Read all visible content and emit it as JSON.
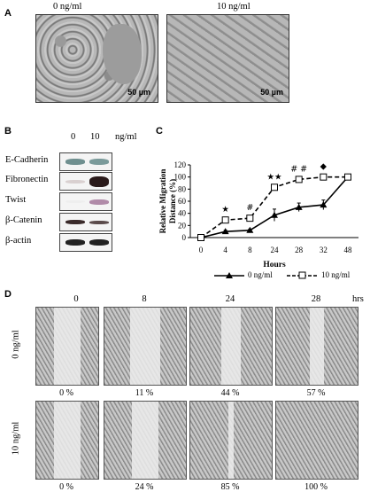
{
  "panel_a": {
    "letter": "A",
    "titles": [
      "0 ng/ml",
      "10 ng/ml"
    ],
    "scale_labels": [
      "50 µm",
      "50 µm"
    ]
  },
  "panel_b": {
    "letter": "B",
    "lane_labels": [
      "0",
      "10"
    ],
    "unit": "ng/ml",
    "proteins": [
      "E-Cadherin",
      "Fibronectin",
      "Twist",
      "β-Catenin",
      "β-actin"
    ]
  },
  "panel_c": {
    "letter": "C"
  },
  "chart_data": {
    "type": "line",
    "ylabel": "Relative Migration Distance (%)",
    "xlabel": "Hours",
    "x": [
      "0",
      "4",
      "8",
      "24",
      "28",
      "32",
      "48"
    ],
    "yticks": [
      "0",
      "20",
      "40",
      "60",
      "80",
      "100",
      "120"
    ],
    "ylim": [
      0,
      120
    ],
    "series": [
      {
        "name": "0 ng/ml",
        "values": [
          0,
          10,
          12,
          37,
          50,
          54,
          100
        ],
        "errors": [
          0,
          2,
          2,
          10,
          7,
          8,
          0
        ],
        "style": "solid",
        "marker": "triangle"
      },
      {
        "name": "10 ng/ml",
        "values": [
          0,
          29,
          32,
          83,
          96,
          100,
          100
        ],
        "errors": [
          0,
          4,
          4,
          4,
          5,
          0,
          0
        ],
        "style": "dashed",
        "marker": "open-square"
      }
    ],
    "significance": [
      {
        "x": "4",
        "symbol": "★"
      },
      {
        "x": "8",
        "symbol": "#"
      },
      {
        "x": "24",
        "symbol": "★★"
      },
      {
        "x": "28",
        "symbol": "# #"
      },
      {
        "x": "32",
        "symbol": "◆"
      }
    ],
    "grid": false,
    "legend_placement": "bottom"
  },
  "panel_d": {
    "letter": "D",
    "time_labels": [
      "0",
      "8",
      "24",
      "28"
    ],
    "time_unit": "hrs",
    "row_labels": [
      "0 ng/ml",
      "10 ng/ml"
    ],
    "row0_pcts": [
      "0 %",
      "11 %",
      "44 %",
      "57 %"
    ],
    "row1_pcts": [
      "0 %",
      "24 %",
      "85 %",
      "100 %"
    ],
    "row0_closure": [
      0,
      11,
      44,
      57
    ],
    "row1_closure": [
      0,
      24,
      85,
      100
    ]
  }
}
